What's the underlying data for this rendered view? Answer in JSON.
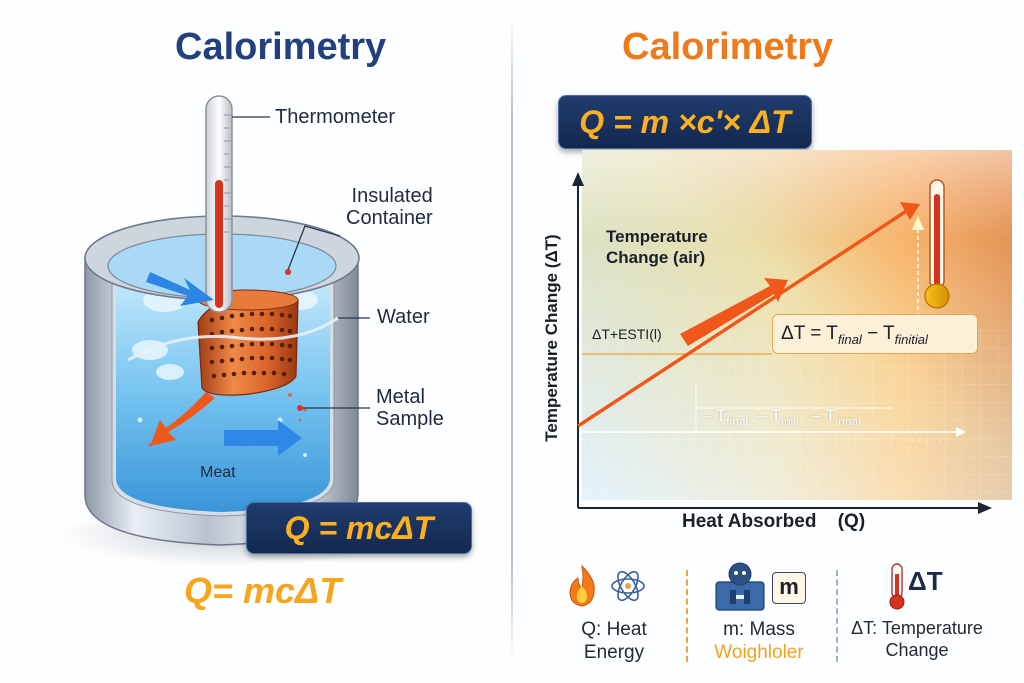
{
  "left_panel": {
    "title": "Calorimetry",
    "labels": {
      "thermometer": "Thermometer",
      "insulated_container_line1": "Insulated",
      "insulated_container_line2": "Container",
      "water": "Water",
      "metal_sample_line1": "Metal",
      "metal_sample_line2": "Sample",
      "heat": "Meat"
    },
    "formula_box": "Q = mcΔT",
    "formula_plain": "Q= mcΔT"
  },
  "right_panel": {
    "title": "Calorimetry",
    "formula_box": "Q = m ×c'× ΔT",
    "chart": {
      "ylabel": "Temperature Change (ΔT)",
      "xlabel": "Heat Absorbed",
      "xlabel_symbol": "(Q)",
      "inner_label_line1": "Temperature",
      "inner_label_line2": "Change (air)",
      "left_marker_label": "ΔT+ESTI(l)",
      "delta_box": {
        "lead": "ΔT = T",
        "sub1": "final",
        "mid": " − T",
        "sub2": "finitial"
      },
      "baseline_labels": [
        {
          "lead": "T",
          "sub": "final"
        },
        {
          "lead": "– T",
          "sub": "inili"
        },
        {
          "lead": "T",
          "sub": "innal"
        }
      ]
    },
    "legend": [
      {
        "icon": "flame-icon",
        "line1": "Q: Heat",
        "line2": "Energy"
      },
      {
        "icon": "scale-icon",
        "tag": "m",
        "line1": "m: Mass",
        "line2": "Woighloler"
      },
      {
        "icon": "thermometer-icon",
        "tag": "ΔT",
        "line1": "ΔT: Temperature",
        "line2": "Change"
      }
    ]
  },
  "colors": {
    "left_title": "#223f7e",
    "right_title": "#ef7a1a",
    "formula_text": "#ffb020",
    "formula_box": "#1a3566",
    "arrow_orange": "#f0581b",
    "arrow_blue": "#2c86e6",
    "water_blue": "#6ec3ef",
    "metal": "#d3652a"
  }
}
